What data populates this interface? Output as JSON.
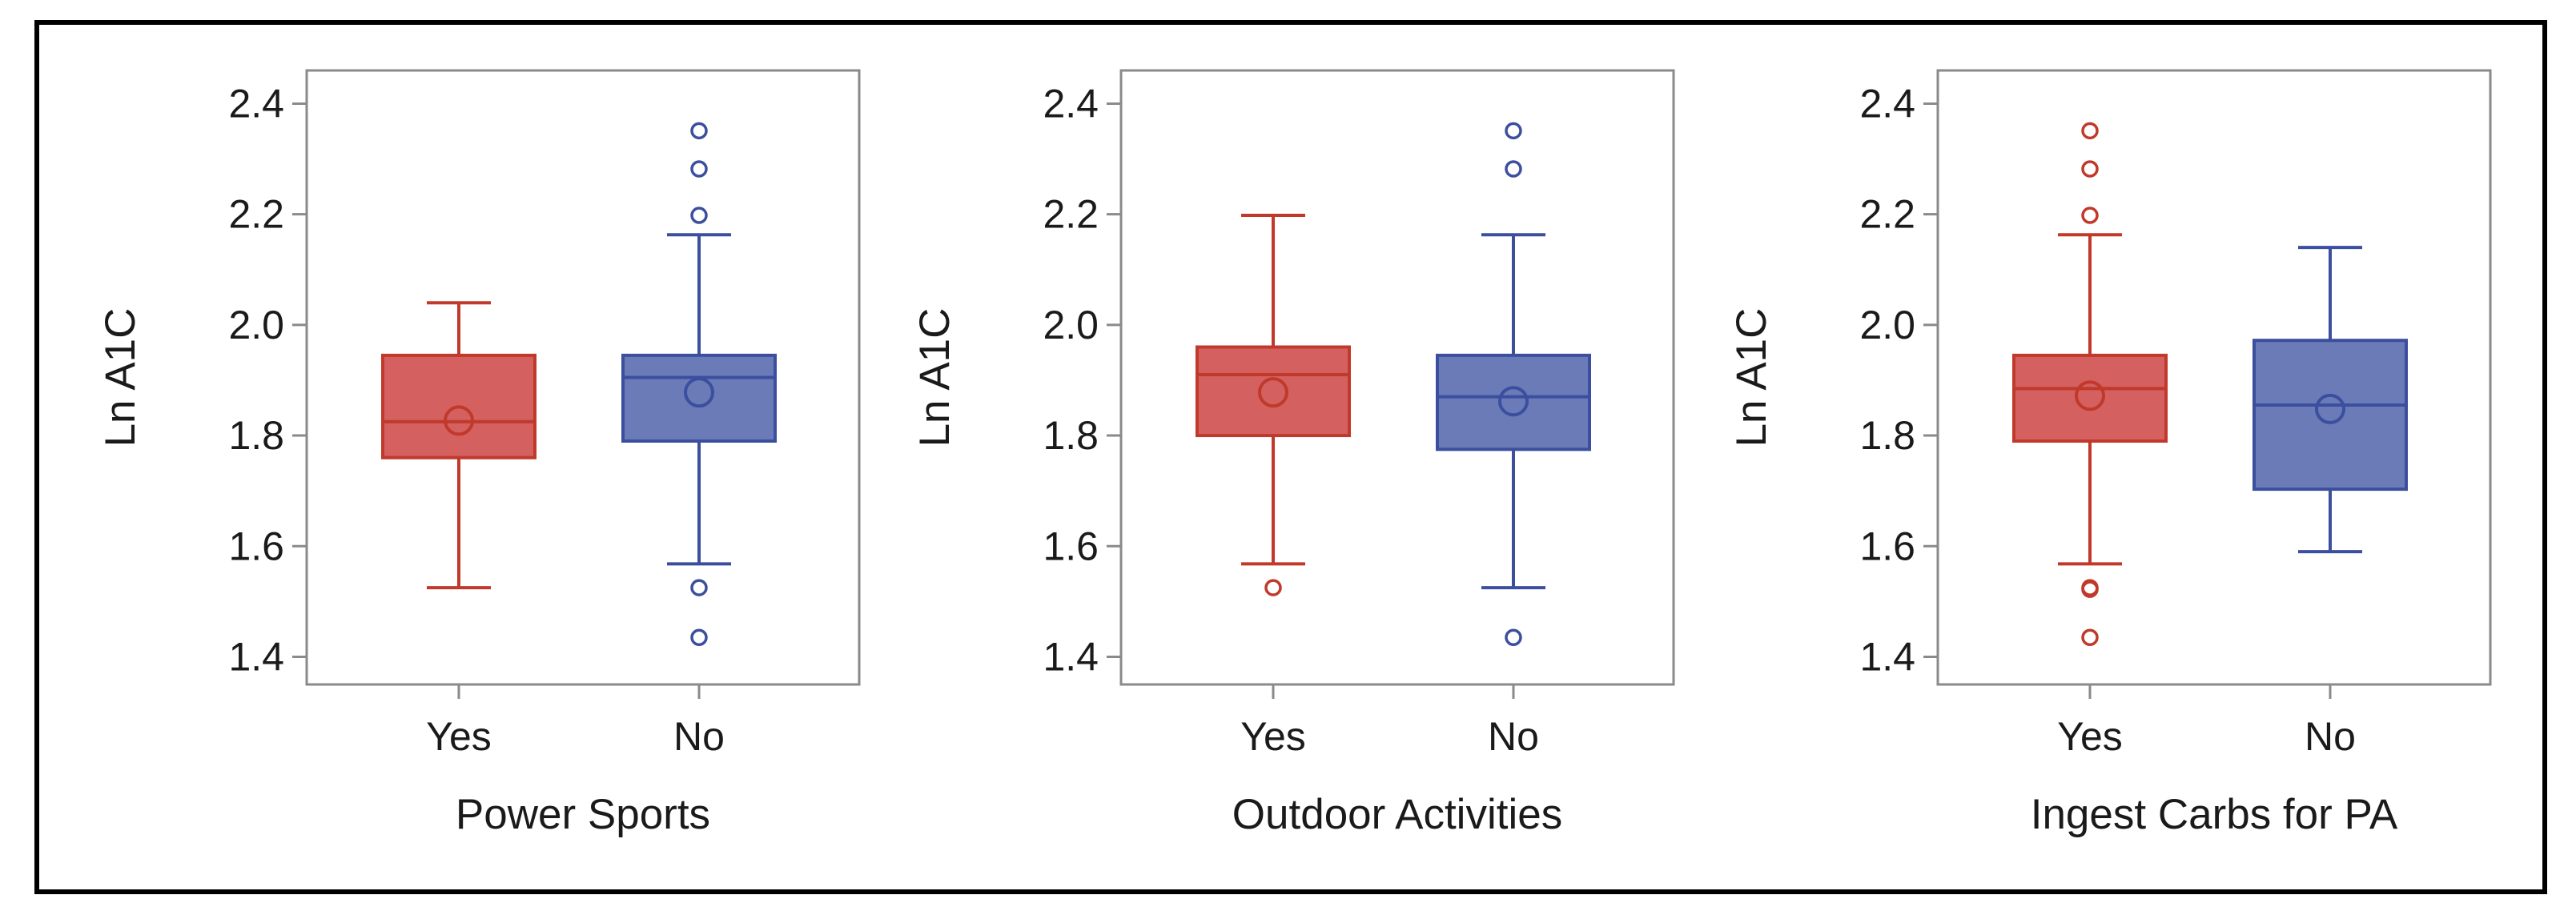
{
  "chart_data": [
    {
      "type": "boxplot",
      "xlabel": "Power Sports",
      "ylabel": "Ln A1C",
      "ylim": [
        1.35,
        2.46
      ],
      "yticks": [
        "1.4",
        "1.6",
        "1.8",
        "2.0",
        "2.2",
        "2.4"
      ],
      "categories": [
        "Yes",
        "No"
      ],
      "boxes": [
        {
          "category": "Yes",
          "color": "#c0392b",
          "fill": "#d46160",
          "whisker_low": 1.525,
          "q1": 1.76,
          "median": 1.825,
          "mean": 1.827,
          "q3": 1.945,
          "whisker_high": 2.04,
          "outliers": []
        },
        {
          "category": "No",
          "color": "#3c4f9e",
          "fill": "#6a7bb8",
          "whisker_low": 1.568,
          "q1": 1.79,
          "median": 1.905,
          "mean": 1.878,
          "q3": 1.945,
          "whisker_high": 2.163,
          "outliers": [
            1.525,
            1.435,
            2.198,
            2.282,
            2.351
          ]
        }
      ]
    },
    {
      "type": "boxplot",
      "xlabel": "Outdoor Activities",
      "ylabel": "Ln A1C",
      "ylim": [
        1.35,
        2.46
      ],
      "yticks": [
        "1.4",
        "1.6",
        "1.8",
        "2.0",
        "2.2",
        "2.4"
      ],
      "categories": [
        "Yes",
        "No"
      ],
      "boxes": [
        {
          "category": "Yes",
          "color": "#c0392b",
          "fill": "#d46160",
          "whisker_low": 1.568,
          "q1": 1.8,
          "median": 1.91,
          "mean": 1.878,
          "q3": 1.96,
          "whisker_high": 2.198,
          "outliers": [
            1.525
          ]
        },
        {
          "category": "No",
          "color": "#3c4f9e",
          "fill": "#6a7bb8",
          "whisker_low": 1.525,
          "q1": 1.775,
          "median": 1.87,
          "mean": 1.862,
          "q3": 1.945,
          "whisker_high": 2.163,
          "outliers": [
            1.435,
            2.282,
            2.351
          ]
        }
      ]
    },
    {
      "type": "boxplot",
      "xlabel": "Ingest Carbs for PA",
      "ylabel": "Ln A1C",
      "ylim": [
        1.35,
        2.46
      ],
      "yticks": [
        "1.4",
        "1.6",
        "1.8",
        "2.0",
        "2.2",
        "2.4"
      ],
      "categories": [
        "Yes",
        "No"
      ],
      "boxes": [
        {
          "category": "Yes",
          "color": "#c0392b",
          "fill": "#d46160",
          "whisker_low": 1.568,
          "q1": 1.79,
          "median": 1.885,
          "mean": 1.872,
          "q3": 1.945,
          "whisker_high": 2.163,
          "outliers": [
            1.525,
            1.522,
            1.435,
            2.198,
            2.282,
            2.351
          ]
        },
        {
          "category": "No",
          "color": "#3c4f9e",
          "fill": "#6a7bb8",
          "whisker_low": 1.59,
          "q1": 1.703,
          "median": 1.855,
          "mean": 1.848,
          "q3": 1.972,
          "whisker_high": 2.14,
          "outliers": []
        }
      ]
    }
  ]
}
